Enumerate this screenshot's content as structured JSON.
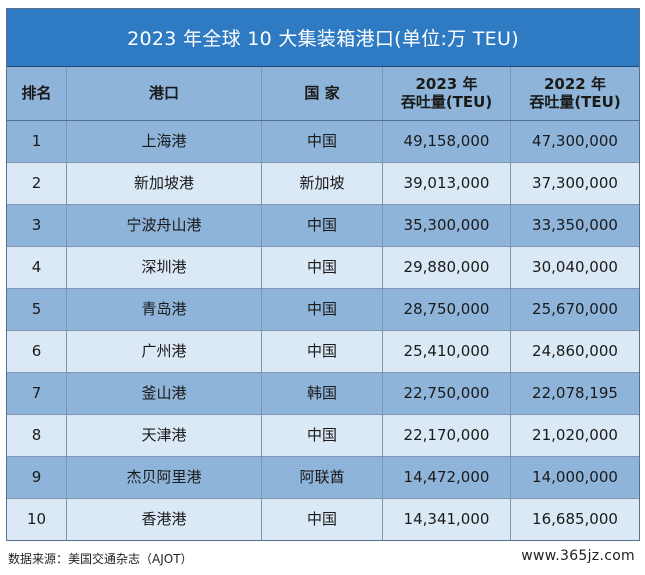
{
  "title": "2023 年全球 10 大集装箱港口(单位:万 TEU)",
  "headers": {
    "rank": "排名",
    "port": "港口",
    "country": "国 家",
    "y2023_line1": "2023 年",
    "y2023_line2": "吞吐量(TEU)",
    "y2022_line1": "2022 年",
    "y2022_line2": "吞吐量(TEU)"
  },
  "rows": [
    {
      "rank": "1",
      "port": "上海港",
      "country": "中国",
      "y2023": "49,158,000",
      "y2022": "47,300,000"
    },
    {
      "rank": "2",
      "port": "新加坡港",
      "country": "新加坡",
      "y2023": "39,013,000",
      "y2022": "37,300,000"
    },
    {
      "rank": "3",
      "port": "宁波舟山港",
      "country": "中国",
      "y2023": "35,300,000",
      "y2022": "33,350,000"
    },
    {
      "rank": "4",
      "port": "深圳港",
      "country": "中国",
      "y2023": "29,880,000",
      "y2022": "30,040,000"
    },
    {
      "rank": "5",
      "port": "青岛港",
      "country": "中国",
      "y2023": "28,750,000",
      "y2022": "25,670,000"
    },
    {
      "rank": "6",
      "port": "广州港",
      "country": "中国",
      "y2023": "25,410,000",
      "y2022": "24,860,000"
    },
    {
      "rank": "7",
      "port": "釜山港",
      "country": "韩国",
      "y2023": "22,750,000",
      "y2022": "22,078,195"
    },
    {
      "rank": "8",
      "port": "天津港",
      "country": "中国",
      "y2023": "22,170,000",
      "y2022": "21,020,000"
    },
    {
      "rank": "9",
      "port": "杰贝阿里港",
      "country": "阿联酋",
      "y2023": "14,472,000",
      "y2022": "14,000,000"
    },
    {
      "rank": "10",
      "port": "香港港",
      "country": "中国",
      "y2023": "14,341,000",
      "y2022": "16,685,000"
    }
  ],
  "footer": {
    "source": "数据来源：美国交通杂志（AJOT）",
    "watermark": "www.365jz.com"
  }
}
